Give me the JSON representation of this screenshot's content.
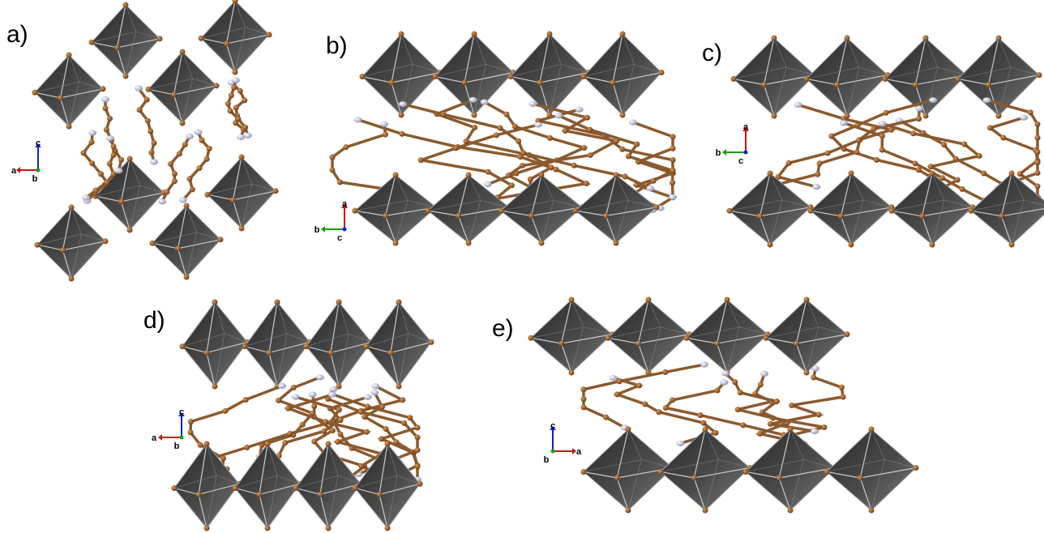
{
  "panels": [
    {
      "label": "a)",
      "axes": [
        "c",
        "a",
        "b"
      ]
    },
    {
      "label": "b)",
      "axes": [
        "a",
        "b",
        "c"
      ]
    },
    {
      "label": "c)",
      "axes": [
        "a",
        "b",
        "c"
      ]
    },
    {
      "label": "d)",
      "axes": [
        "c",
        "a",
        "b"
      ]
    },
    {
      "label": "e)",
      "axes": [
        "c",
        "a",
        "b"
      ]
    }
  ]
}
